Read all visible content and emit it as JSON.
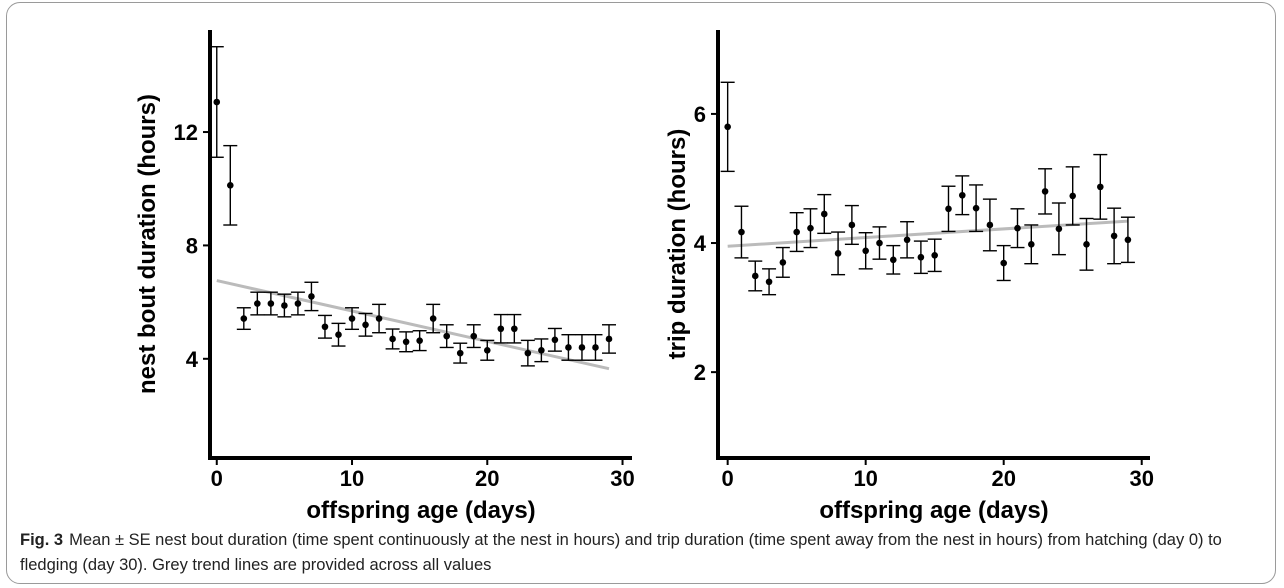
{
  "chart_data": [
    {
      "type": "scatter",
      "ylabel": "nest bout duration (hours)",
      "xlabel": "offspring age (days)",
      "x": [
        0,
        1,
        2,
        3,
        4,
        5,
        6,
        7,
        8,
        9,
        10,
        11,
        12,
        13,
        14,
        15,
        16,
        17,
        18,
        19,
        20,
        21,
        22,
        23,
        24,
        25,
        26,
        27,
        28,
        29
      ],
      "values": [
        13.06,
        10.12,
        5.42,
        5.95,
        5.95,
        5.88,
        5.95,
        6.2,
        5.13,
        4.85,
        5.42,
        5.2,
        5.42,
        4.7,
        4.6,
        4.64,
        5.42,
        4.8,
        4.2,
        4.8,
        4.3,
        5.06,
        5.06,
        4.2,
        4.3,
        4.67,
        4.4,
        4.4,
        4.4,
        4.7
      ],
      "errors": [
        1.95,
        1.4,
        0.38,
        0.4,
        0.4,
        0.4,
        0.4,
        0.5,
        0.4,
        0.4,
        0.38,
        0.4,
        0.5,
        0.35,
        0.35,
        0.35,
        0.5,
        0.4,
        0.35,
        0.4,
        0.35,
        0.5,
        0.5,
        0.45,
        0.4,
        0.4,
        0.45,
        0.45,
        0.45,
        0.5
      ],
      "color": "#000000",
      "trend": {
        "x": [
          0,
          29
        ],
        "values": [
          6.76,
          3.65
        ],
        "color": "#bbbbbb"
      },
      "xlim": [
        -0.5,
        30.7
      ],
      "ylim": [
        0.5,
        15.6
      ],
      "xticks": [
        0,
        10,
        20,
        30
      ],
      "yticks": [
        4,
        8,
        12
      ]
    },
    {
      "type": "scatter",
      "ylabel": "trip duration (hours)",
      "xlabel": "offspring age (days)",
      "x": [
        0,
        1,
        2,
        3,
        4,
        5,
        6,
        7,
        8,
        9,
        10,
        11,
        12,
        13,
        14,
        15,
        16,
        17,
        18,
        19,
        20,
        21,
        22,
        23,
        24,
        25,
        26,
        27,
        28,
        29
      ],
      "values": [
        5.8,
        4.17,
        3.49,
        3.4,
        3.7,
        4.17,
        4.23,
        4.45,
        3.84,
        4.28,
        3.88,
        4.0,
        3.74,
        4.05,
        3.78,
        3.81,
        4.53,
        4.74,
        4.54,
        4.28,
        3.69,
        4.23,
        3.98,
        4.8,
        4.22,
        4.73,
        3.98,
        4.87,
        4.11,
        4.05
      ],
      "errors": [
        0.69,
        0.4,
        0.23,
        0.2,
        0.23,
        0.3,
        0.3,
        0.3,
        0.33,
        0.3,
        0.28,
        0.25,
        0.22,
        0.28,
        0.25,
        0.25,
        0.35,
        0.3,
        0.36,
        0.4,
        0.27,
        0.3,
        0.3,
        0.35,
        0.4,
        0.45,
        0.4,
        0.5,
        0.43,
        0.35
      ],
      "color": "#000000",
      "trend": {
        "x": [
          0,
          29
        ],
        "values": [
          3.95,
          4.34
        ],
        "color": "#bbbbbb"
      },
      "xlim": [
        -0.7,
        30.6
      ],
      "ylim": [
        0.67,
        7.3
      ],
      "xticks": [
        0,
        10,
        20,
        30
      ],
      "yticks": [
        2,
        4,
        6
      ]
    }
  ],
  "caption": {
    "label": "Fig. 3",
    "text": "Mean ± SE nest bout duration (time spent continuously at the nest in hours) and trip duration (time spent away from the nest in hours) from hatching (day 0) to fledging (day 30). Grey trend lines are provided across all values"
  }
}
